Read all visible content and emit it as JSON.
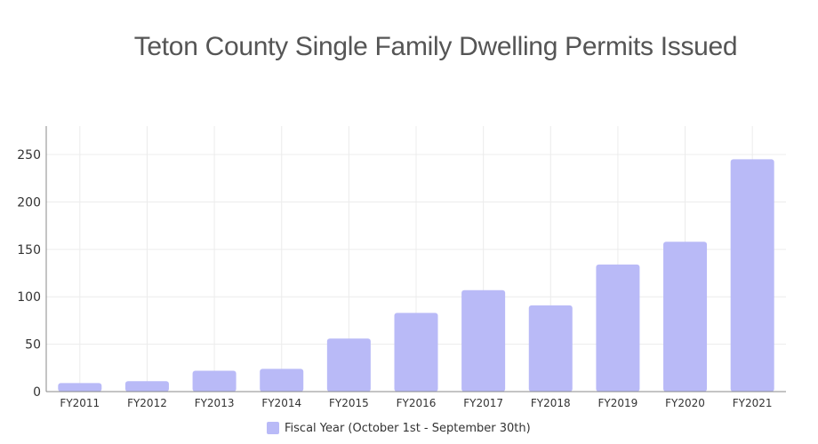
{
  "colors": {
    "bar": "#b9baf7",
    "grid": "#ececec",
    "axis": "#888888",
    "title": "#555555"
  },
  "chart_data": {
    "type": "bar",
    "title": "Teton County Single Family Dwelling Permits Issued",
    "categories": [
      "FY2011",
      "FY2012",
      "FY2013",
      "FY2014",
      "FY2015",
      "FY2016",
      "FY2017",
      "FY2018",
      "FY2019",
      "FY2020",
      "FY2021"
    ],
    "series": [
      {
        "name": "Fiscal Year (October 1st - September 30th)",
        "values": [
          9,
          11,
          22,
          24,
          56,
          83,
          107,
          91,
          134,
          158,
          245
        ]
      }
    ],
    "xlabel": "",
    "ylabel": "",
    "ylim": [
      0,
      280
    ],
    "yticks": [
      0,
      50,
      100,
      150,
      200,
      250
    ],
    "grid": true,
    "legend_position": "bottom"
  }
}
